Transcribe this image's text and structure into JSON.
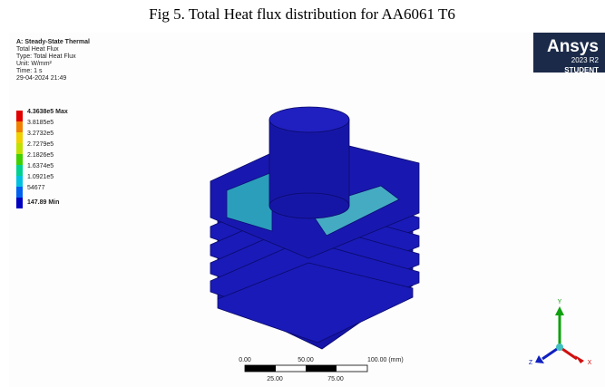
{
  "caption": "Fig 5. Total Heat flux distribution for AA6061 T6",
  "info": [
    "A: Steady-State Thermal",
    "Total Heat Flux",
    "Type: Total Heat Flux",
    "Unit: W/mm²",
    "Time: 1 s",
    "29-04-2024 21:49"
  ],
  "legend": [
    "4.3638e5 Max",
    "3.8185e5",
    "3.2732e5",
    "2.7279e5",
    "2.1826e5",
    "1.6374e5",
    "1.0921e5",
    "54677",
    "147.89 Min"
  ],
  "logo": {
    "brand": "Ansys",
    "version": "2023 R2",
    "edition": "STUDENT"
  },
  "scale_bar": {
    "top": [
      "0.00",
      "50.00",
      "100.00 (mm)"
    ],
    "bottom": [
      "25.00",
      "75.00"
    ]
  },
  "triad": {
    "y": "Y",
    "z": "Z",
    "x": "X"
  }
}
